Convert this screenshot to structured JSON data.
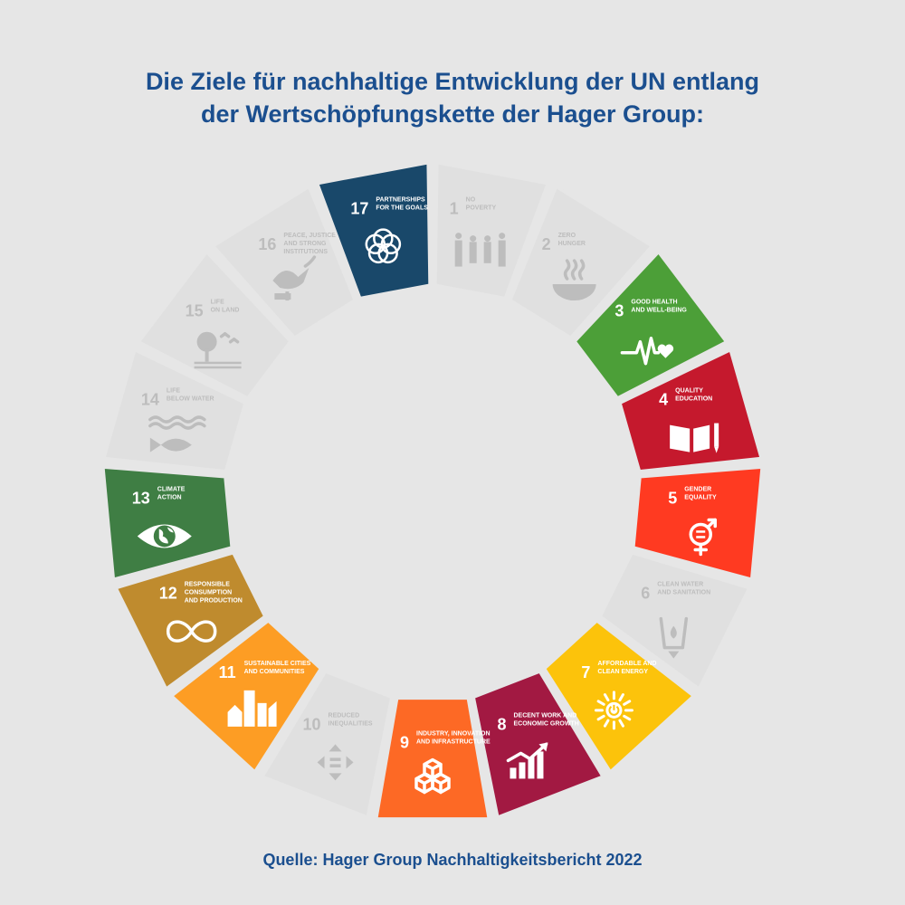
{
  "title": {
    "line1": "Die Ziele für nachhaltige Entwicklung der UN entlang",
    "line2": "der Wertschöpfungskette der Hager Group:"
  },
  "source": "Quelle: Hager Group Nachhaltigkeitsbericht 2022",
  "inactive_color": "#e0e0e0",
  "inactive_text_color": "#bdbdbd",
  "goals": [
    {
      "number": "1",
      "lines": [
        "NO",
        "POVERTY"
      ],
      "active": false,
      "color": "#e5243b",
      "icon": "family-icon"
    },
    {
      "number": "2",
      "lines": [
        "ZERO",
        "HUNGER"
      ],
      "active": false,
      "color": "#dda63a",
      "icon": "bowl-icon"
    },
    {
      "number": "3",
      "lines": [
        "GOOD HEALTH",
        "AND WELL-BEING"
      ],
      "active": true,
      "color": "#4c9f38",
      "icon": "heartbeat-icon"
    },
    {
      "number": "4",
      "lines": [
        "QUALITY",
        "EDUCATION"
      ],
      "active": true,
      "color": "#c5192d",
      "icon": "book-icon"
    },
    {
      "number": "5",
      "lines": [
        "GENDER",
        "EQUALITY"
      ],
      "active": true,
      "color": "#ff3a21",
      "icon": "gender-icon"
    },
    {
      "number": "6",
      "lines": [
        "CLEAN WATER",
        "AND SANITATION"
      ],
      "active": false,
      "color": "#26bde2",
      "icon": "water-glass-icon"
    },
    {
      "number": "7",
      "lines": [
        "AFFORDABLE AND",
        "CLEAN ENERGY"
      ],
      "active": true,
      "color": "#fcc30b",
      "icon": "sun-power-icon"
    },
    {
      "number": "8",
      "lines": [
        "DECENT WORK AND",
        "ECONOMIC GROWTH"
      ],
      "active": true,
      "color": "#a21942",
      "icon": "growth-chart-icon"
    },
    {
      "number": "9",
      "lines": [
        "INDUSTRY, INNOVATION",
        "AND INFRASTRUCTURE"
      ],
      "active": true,
      "color": "#fd6925",
      "icon": "cubes-icon"
    },
    {
      "number": "10",
      "lines": [
        "REDUCED",
        "INEQUALITIES"
      ],
      "active": false,
      "color": "#dd1367",
      "icon": "arrows-icon"
    },
    {
      "number": "11",
      "lines": [
        "SUSTAINABLE CITIES",
        "AND COMMUNITIES"
      ],
      "active": true,
      "color": "#fd9d24",
      "icon": "city-icon"
    },
    {
      "number": "12",
      "lines": [
        "RESPONSIBLE",
        "CONSUMPTION",
        "AND PRODUCTION"
      ],
      "active": true,
      "color": "#bf8b2e",
      "icon": "infinity-icon"
    },
    {
      "number": "13",
      "lines": [
        "CLIMATE",
        "ACTION"
      ],
      "active": true,
      "color": "#3f7e44",
      "icon": "eye-globe-icon"
    },
    {
      "number": "14",
      "lines": [
        "LIFE",
        "BELOW WATER"
      ],
      "active": false,
      "color": "#0a97d9",
      "icon": "fish-icon"
    },
    {
      "number": "15",
      "lines": [
        "LIFE",
        "ON LAND"
      ],
      "active": false,
      "color": "#56c02b",
      "icon": "tree-icon"
    },
    {
      "number": "16",
      "lines": [
        "PEACE, JUSTICE",
        "AND STRONG",
        "INSTITUTIONS"
      ],
      "active": false,
      "color": "#00689d",
      "icon": "dove-icon"
    },
    {
      "number": "17",
      "lines": [
        "PARTNERSHIPS",
        "FOR THE GOALS"
      ],
      "active": true,
      "color": "#19486a",
      "icon": "rings-icon"
    }
  ]
}
